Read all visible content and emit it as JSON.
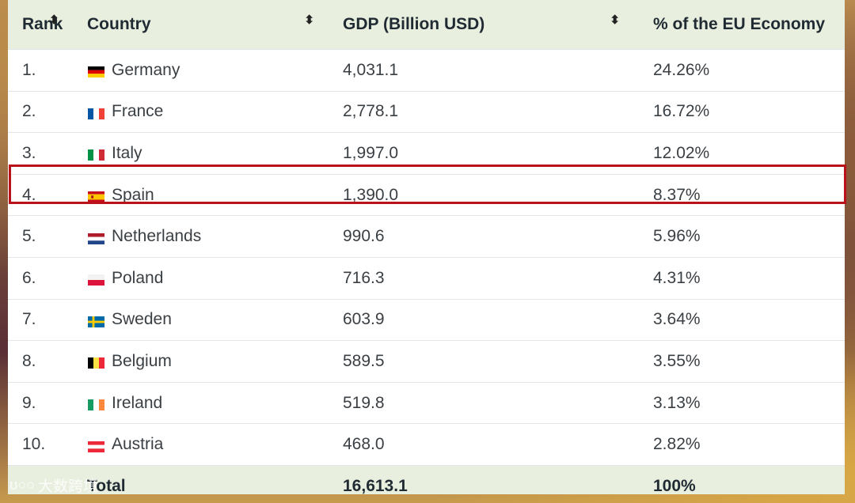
{
  "table": {
    "headers": {
      "rank": "Rank",
      "country": "Country",
      "gdp": "GDP (Billion USD)",
      "share": "% of the EU Economy"
    },
    "rows": [
      {
        "rank": "1.",
        "country": "Germany",
        "gdp": "4,031.1",
        "share": "24.26%",
        "flag": "flag-germany"
      },
      {
        "rank": "2.",
        "country": "France",
        "gdp": "2,778.1",
        "share": "16.72%",
        "flag": "flag-france"
      },
      {
        "rank": "3.",
        "country": "Italy",
        "gdp": "1,997.0",
        "share": "12.02%",
        "flag": "flag-italy"
      },
      {
        "rank": "4.",
        "country": "Spain",
        "gdp": "1,390.0",
        "share": "8.37%",
        "flag": "flag-spain"
      },
      {
        "rank": "5.",
        "country": "Netherlands",
        "gdp": "990.6",
        "share": "5.96%",
        "flag": "flag-netherlands"
      },
      {
        "rank": "6.",
        "country": "Poland",
        "gdp": "716.3",
        "share": "4.31%",
        "flag": "flag-poland"
      },
      {
        "rank": "7.",
        "country": "Sweden",
        "gdp": "603.9",
        "share": "3.64%",
        "flag": "flag-sweden"
      },
      {
        "rank": "8.",
        "country": "Belgium",
        "gdp": "589.5",
        "share": "3.55%",
        "flag": "flag-belgium"
      },
      {
        "rank": "9.",
        "country": "Ireland",
        "gdp": "519.8",
        "share": "3.13%",
        "flag": "flag-ireland"
      },
      {
        "rank": "10.",
        "country": "Austria",
        "gdp": "468.0",
        "share": "2.82%",
        "flag": "flag-austria"
      }
    ],
    "total": {
      "label": "Total",
      "gdp": "16,613.1",
      "share": "100%"
    },
    "highlighted_row": "Spain"
  },
  "watermark": "大数跨境",
  "colors": {
    "header_bg": "#e9efdf",
    "highlight_border": "#b9121b"
  }
}
